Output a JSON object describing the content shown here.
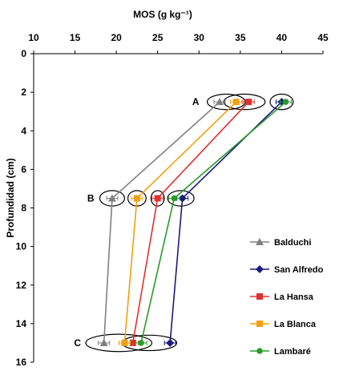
{
  "chart_data": {
    "type": "line",
    "title": "",
    "xlabel": "MOS (g kg⁻¹)",
    "ylabel": "Profundidad (cm)",
    "xlim": [
      10,
      45
    ],
    "ylim": [
      0,
      16
    ],
    "x_ticks": [
      "10",
      "15",
      "20",
      "25",
      "30",
      "35",
      "40",
      "45"
    ],
    "y_ticks": [
      "0",
      "2",
      "4",
      "6",
      "8",
      "10",
      "12",
      "14",
      "16"
    ],
    "x_axis_position": "top",
    "y_axis_inverted": true,
    "grid": false,
    "legend_position": "right",
    "series": [
      {
        "name": "Balduchi",
        "color": "#808080",
        "marker": "triangle",
        "points": [
          {
            "x": 32.5,
            "y": 2.5
          },
          {
            "x": 19.5,
            "y": 7.5
          },
          {
            "x": 18.5,
            "y": 15.0
          }
        ]
      },
      {
        "name": "San Alfredo",
        "color": "#1a1a80",
        "marker": "diamond",
        "points": [
          {
            "x": 40.0,
            "y": 2.5
          },
          {
            "x": 28.0,
            "y": 7.5
          },
          {
            "x": 26.5,
            "y": 15.0
          }
        ]
      },
      {
        "name": "La Hansa",
        "color": "#e03030",
        "marker": "square",
        "points": [
          {
            "x": 36.0,
            "y": 2.5
          },
          {
            "x": 25.0,
            "y": 7.5
          },
          {
            "x": 22.0,
            "y": 15.0
          }
        ]
      },
      {
        "name": "La Blanca",
        "color": "#f0a010",
        "marker": "square",
        "points": [
          {
            "x": 34.5,
            "y": 2.5
          },
          {
            "x": 22.5,
            "y": 7.5
          },
          {
            "x": 21.0,
            "y": 15.0
          }
        ]
      },
      {
        "name": "Lambaré",
        "color": "#2a9a2a",
        "marker": "circle",
        "points": [
          {
            "x": 40.5,
            "y": 2.5
          },
          {
            "x": 27.0,
            "y": 7.5
          },
          {
            "x": 23.0,
            "y": 15.0
          }
        ]
      }
    ],
    "group_labels": [
      {
        "label": "A",
        "y": 2.5
      },
      {
        "label": "B",
        "y": 7.5
      },
      {
        "label": "C",
        "y": 15.0
      }
    ],
    "ellipses": [
      {
        "x": 33.3,
        "y": 2.5,
        "rx": 2.3,
        "ry": 0.4
      },
      {
        "x": 35.5,
        "y": 2.5,
        "rx": 2.5,
        "ry": 0.4
      },
      {
        "x": 40.0,
        "y": 2.5,
        "rx": 1.4,
        "ry": 0.4
      },
      {
        "x": 19.5,
        "y": 7.5,
        "rx": 1.5,
        "ry": 0.4
      },
      {
        "x": 22.5,
        "y": 7.5,
        "rx": 1.1,
        "ry": 0.4
      },
      {
        "x": 25.0,
        "y": 7.5,
        "rx": 0.8,
        "ry": 0.4
      },
      {
        "x": 27.8,
        "y": 7.5,
        "rx": 1.6,
        "ry": 0.4
      },
      {
        "x": 20.3,
        "y": 15.0,
        "rx": 4.0,
        "ry": 0.45
      },
      {
        "x": 24.0,
        "y": 15.0,
        "rx": 3.3,
        "ry": 0.4
      }
    ]
  }
}
